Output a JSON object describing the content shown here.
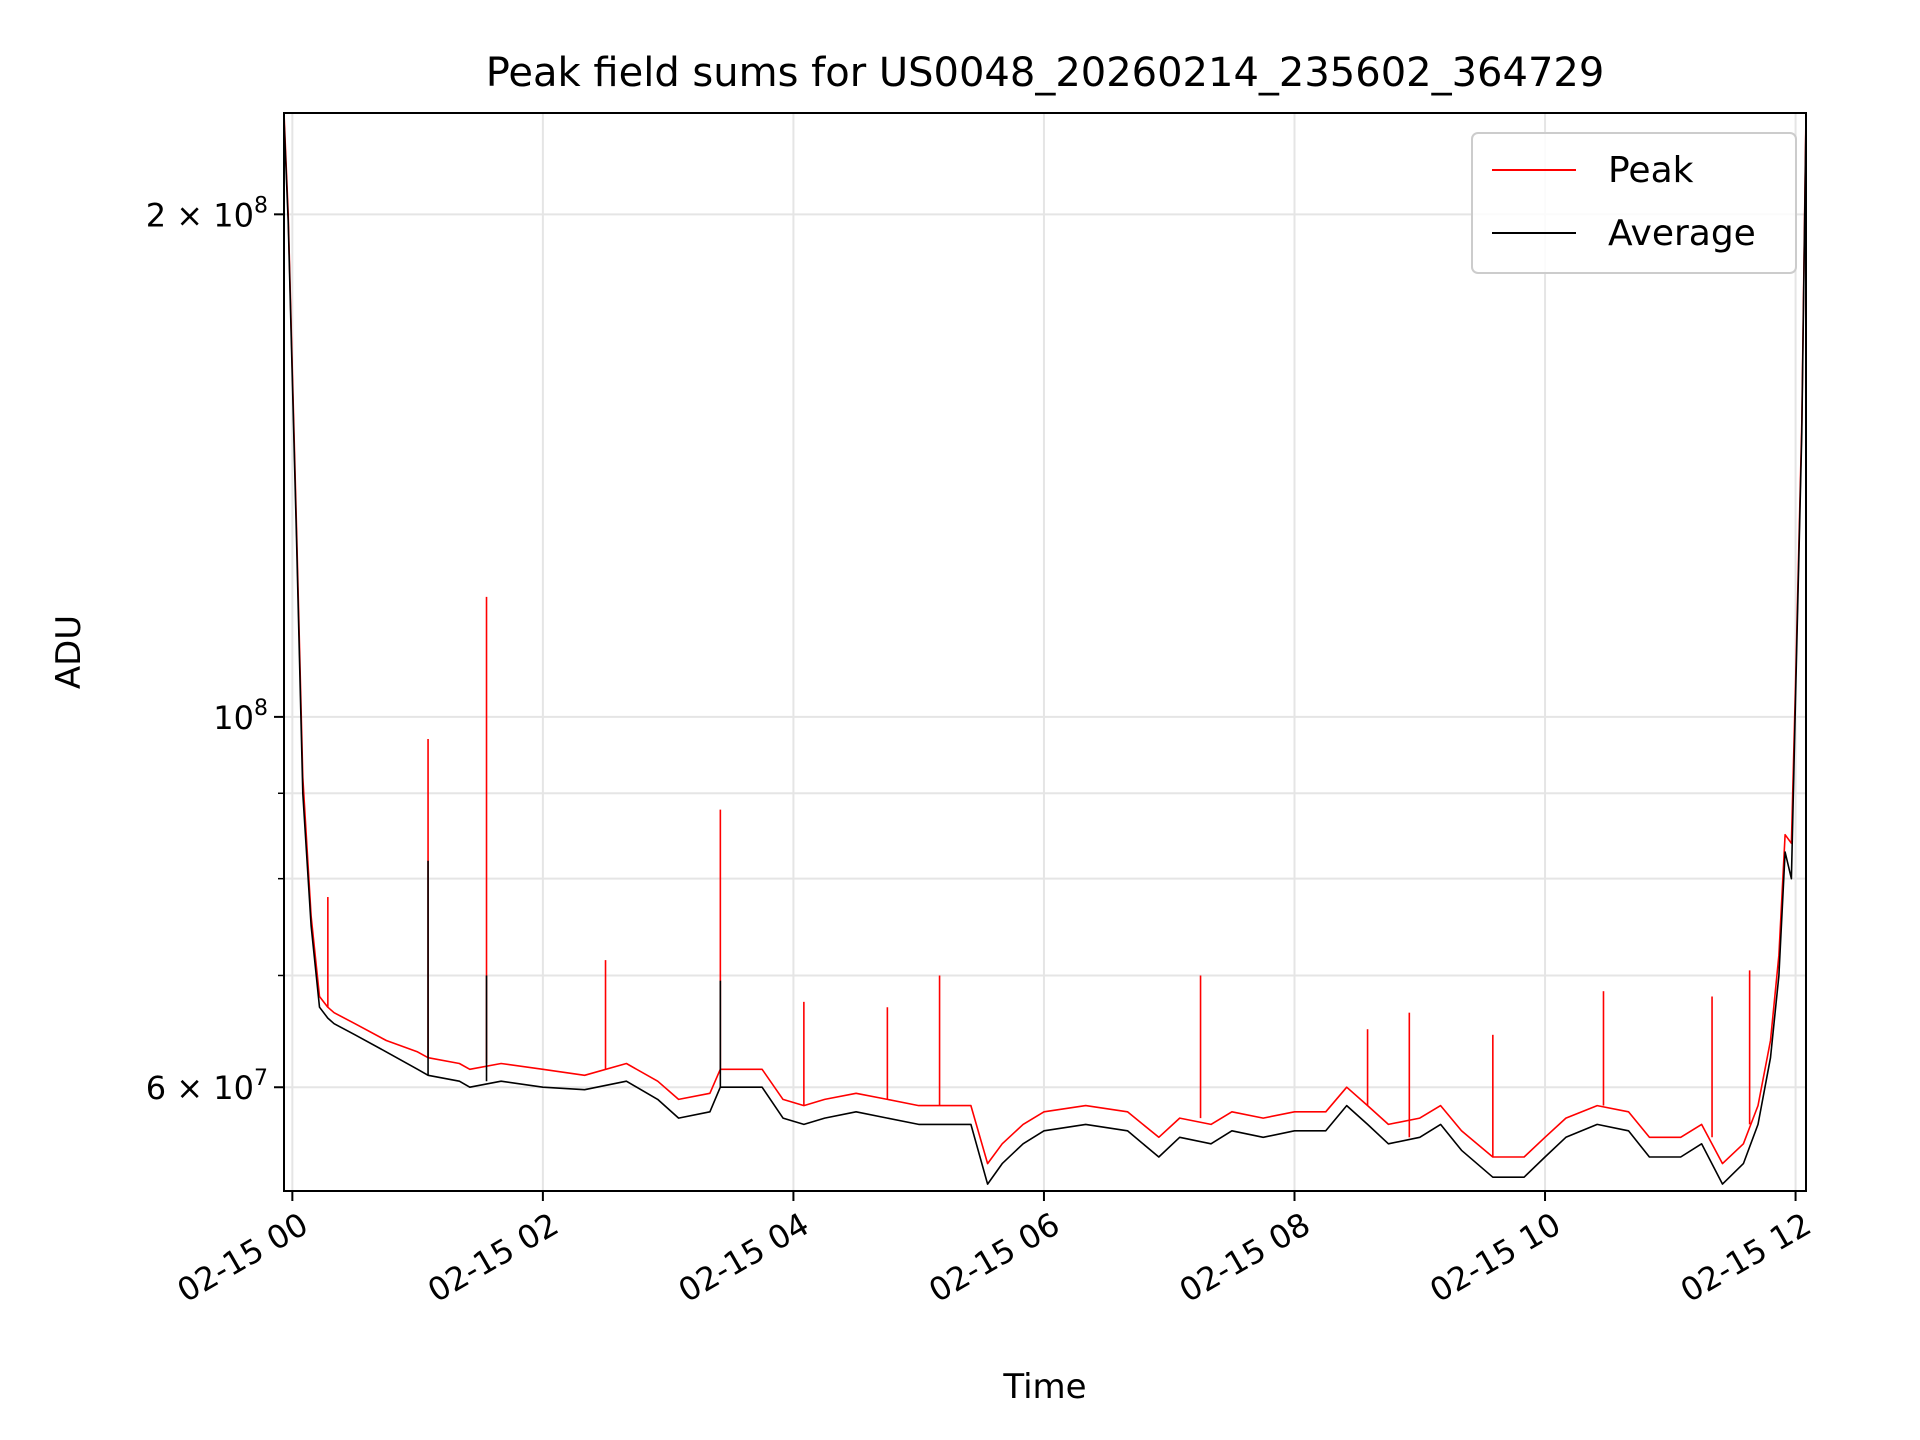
{
  "chart_data": {
    "type": "line",
    "title": "Peak field sums for US0048_20260214_235602_364729",
    "xlabel": "Time",
    "ylabel": "ADU",
    "y_scale": "log",
    "ylim": [
      52000000,
      230000000
    ],
    "xlim": [
      "2026-02-14 23:56",
      "2026-02-15 12:05"
    ],
    "grid": true,
    "legend_position": "upper right",
    "x_ticks": [
      {
        "value": "2026-02-15 00:00",
        "label": "02-15 00"
      },
      {
        "value": "2026-02-15 02:00",
        "label": "02-15 02"
      },
      {
        "value": "2026-02-15 04:00",
        "label": "02-15 04"
      },
      {
        "value": "2026-02-15 06:00",
        "label": "02-15 06"
      },
      {
        "value": "2026-02-15 08:00",
        "label": "02-15 08"
      },
      {
        "value": "2026-02-15 10:00",
        "label": "02-15 10"
      },
      {
        "value": "2026-02-15 12:00",
        "label": "02-15 12"
      }
    ],
    "y_ticks": [
      {
        "value": 200000000,
        "label": "2 × 10⁸",
        "mant": "2 × 10",
        "exp": "8"
      },
      {
        "value": 100000000,
        "label": "10⁸",
        "mant": "10",
        "exp": "8"
      },
      {
        "value": 60000000,
        "label": "6 × 10⁷",
        "mant": "6 × 10",
        "exp": "7"
      }
    ],
    "y_minor_ticks": [
      70000000,
      80000000,
      90000000
    ],
    "series": [
      {
        "name": "Peak",
        "color": "#ff0000",
        "x": [
          "2026-02-14 23:56",
          "2026-02-14 23:58",
          "2026-02-15 00:02",
          "2026-02-15 00:05",
          "2026-02-15 00:09",
          "2026-02-15 00:13",
          "2026-02-15 00:17",
          "2026-02-15 00:20",
          "2026-02-15 00:30",
          "2026-02-15 00:45",
          "2026-02-15 01:00",
          "2026-02-15 01:05",
          "2026-02-15 01:20",
          "2026-02-15 01:25",
          "2026-02-15 01:40",
          "2026-02-15 02:00",
          "2026-02-15 02:20",
          "2026-02-15 02:40",
          "2026-02-15 02:55",
          "2026-02-15 03:05",
          "2026-02-15 03:20",
          "2026-02-15 03:25",
          "2026-02-15 03:45",
          "2026-02-15 03:55",
          "2026-02-15 04:05",
          "2026-02-15 04:15",
          "2026-02-15 04:30",
          "2026-02-15 04:45",
          "2026-02-15 05:00",
          "2026-02-15 05:15",
          "2026-02-15 05:25",
          "2026-02-15 05:33",
          "2026-02-15 05:40",
          "2026-02-15 05:50",
          "2026-02-15 06:00",
          "2026-02-15 06:20",
          "2026-02-15 06:40",
          "2026-02-15 06:55",
          "2026-02-15 07:05",
          "2026-02-15 07:20",
          "2026-02-15 07:30",
          "2026-02-15 07:45",
          "2026-02-15 08:00",
          "2026-02-15 08:15",
          "2026-02-15 08:25",
          "2026-02-15 08:35",
          "2026-02-15 08:45",
          "2026-02-15 09:00",
          "2026-02-15 09:10",
          "2026-02-15 09:20",
          "2026-02-15 09:35",
          "2026-02-15 09:50",
          "2026-02-15 10:00",
          "2026-02-15 10:10",
          "2026-02-15 10:25",
          "2026-02-15 10:40",
          "2026-02-15 10:50",
          "2026-02-15 11:05",
          "2026-02-15 11:15",
          "2026-02-15 11:25",
          "2026-02-15 11:35",
          "2026-02-15 11:42",
          "2026-02-15 11:48",
          "2026-02-15 11:52",
          "2026-02-15 11:55",
          "2026-02-15 11:58",
          "2026-02-15 12:00",
          "2026-02-15 12:03",
          "2026-02-15 12:05"
        ],
        "values": [
          230000000,
          200000000,
          130000000,
          92000000,
          76000000,
          68000000,
          67000000,
          66500000,
          65500000,
          64000000,
          63000000,
          62500000,
          62000000,
          61500000,
          62000000,
          61500000,
          61000000,
          62000000,
          60500000,
          59000000,
          59500000,
          61500000,
          61500000,
          59000000,
          58500000,
          59000000,
          59500000,
          59000000,
          58500000,
          58500000,
          58500000,
          54000000,
          55500000,
          57000000,
          58000000,
          58500000,
          58000000,
          56000000,
          57500000,
          57000000,
          58000000,
          57500000,
          58000000,
          58000000,
          60000000,
          58500000,
          57000000,
          57500000,
          58500000,
          56500000,
          54500000,
          54500000,
          56000000,
          57500000,
          58500000,
          58000000,
          56000000,
          56000000,
          57000000,
          54000000,
          55500000,
          58500000,
          64000000,
          72000000,
          85000000,
          84000000,
          105000000,
          150000000,
          230000000
        ]
      },
      {
        "name": "Average",
        "color": "#000000",
        "x": [
          "2026-02-14 23:56",
          "2026-02-14 23:58",
          "2026-02-15 00:02",
          "2026-02-15 00:05",
          "2026-02-15 00:09",
          "2026-02-15 00:13",
          "2026-02-15 00:17",
          "2026-02-15 00:20",
          "2026-02-15 00:30",
          "2026-02-15 00:45",
          "2026-02-15 01:00",
          "2026-02-15 01:05",
          "2026-02-15 01:20",
          "2026-02-15 01:25",
          "2026-02-15 01:40",
          "2026-02-15 02:00",
          "2026-02-15 02:20",
          "2026-02-15 02:40",
          "2026-02-15 02:55",
          "2026-02-15 03:05",
          "2026-02-15 03:20",
          "2026-02-15 03:25",
          "2026-02-15 03:45",
          "2026-02-15 03:55",
          "2026-02-15 04:05",
          "2026-02-15 04:15",
          "2026-02-15 04:30",
          "2026-02-15 04:45",
          "2026-02-15 05:00",
          "2026-02-15 05:15",
          "2026-02-15 05:25",
          "2026-02-15 05:33",
          "2026-02-15 05:40",
          "2026-02-15 05:50",
          "2026-02-15 06:00",
          "2026-02-15 06:20",
          "2026-02-15 06:40",
          "2026-02-15 06:55",
          "2026-02-15 07:05",
          "2026-02-15 07:20",
          "2026-02-15 07:30",
          "2026-02-15 07:45",
          "2026-02-15 08:00",
          "2026-02-15 08:15",
          "2026-02-15 08:25",
          "2026-02-15 08:35",
          "2026-02-15 08:45",
          "2026-02-15 09:00",
          "2026-02-15 09:10",
          "2026-02-15 09:20",
          "2026-02-15 09:35",
          "2026-02-15 09:50",
          "2026-02-15 10:00",
          "2026-02-15 10:10",
          "2026-02-15 10:25",
          "2026-02-15 10:40",
          "2026-02-15 10:50",
          "2026-02-15 11:05",
          "2026-02-15 11:15",
          "2026-02-15 11:25",
          "2026-02-15 11:35",
          "2026-02-15 11:42",
          "2026-02-15 11:48",
          "2026-02-15 11:52",
          "2026-02-15 11:55",
          "2026-02-15 11:58",
          "2026-02-15 12:00",
          "2026-02-15 12:03",
          "2026-02-15 12:05"
        ],
        "values": [
          228000000,
          198000000,
          128000000,
          90000000,
          75000000,
          67000000,
          66000000,
          65500000,
          64500000,
          63000000,
          61500000,
          61000000,
          60500000,
          60000000,
          60500000,
          60000000,
          59800000,
          60500000,
          59000000,
          57500000,
          58000000,
          60000000,
          60000000,
          57500000,
          57000000,
          57500000,
          58000000,
          57500000,
          57000000,
          57000000,
          57000000,
          52500000,
          54000000,
          55500000,
          56500000,
          57000000,
          56500000,
          54500000,
          56000000,
          55500000,
          56500000,
          56000000,
          56500000,
          56500000,
          58500000,
          57000000,
          55500000,
          56000000,
          57000000,
          55000000,
          53000000,
          53000000,
          54500000,
          56000000,
          57000000,
          56500000,
          54500000,
          54500000,
          55500000,
          52500000,
          54000000,
          57000000,
          62500000,
          70000000,
          83000000,
          80000000,
          103000000,
          148000000,
          228000000
        ]
      }
    ],
    "spikes": [
      {
        "series": "Peak",
        "x": "2026-02-15 01:05",
        "base": 62500000,
        "top": 97000000
      },
      {
        "series": "Average",
        "x": "2026-02-15 01:05",
        "base": 61000000,
        "top": 82000000
      },
      {
        "series": "Peak",
        "x": "2026-02-15 01:33",
        "base": 62000000,
        "top": 118000000
      },
      {
        "series": "Average",
        "x": "2026-02-15 01:33",
        "base": 60500000,
        "top": 70000000
      },
      {
        "series": "Peak",
        "x": "2026-02-15 03:25",
        "base": 61500000,
        "top": 88000000
      },
      {
        "series": "Average",
        "x": "2026-02-15 03:25",
        "base": 60000000,
        "top": 69500000
      },
      {
        "series": "Peak",
        "x": "2026-02-15 00:17",
        "base": 67000000,
        "top": 78000000
      },
      {
        "series": "Peak",
        "x": "2026-02-15 02:30",
        "base": 61500000,
        "top": 71500000
      },
      {
        "series": "Peak",
        "x": "2026-02-15 05:10",
        "base": 58500000,
        "top": 70000000
      },
      {
        "series": "Peak",
        "x": "2026-02-15 07:15",
        "base": 57500000,
        "top": 70000000
      },
      {
        "series": "Peak",
        "x": "2026-02-15 09:35",
        "base": 54500000,
        "top": 64500000
      },
      {
        "series": "Peak",
        "x": "2026-02-15 10:28",
        "base": 58500000,
        "top": 68500000
      },
      {
        "series": "Peak",
        "x": "2026-02-15 11:20",
        "base": 56000000,
        "top": 68000000
      },
      {
        "series": "Peak",
        "x": "2026-02-15 11:38",
        "base": 57000000,
        "top": 70500000
      },
      {
        "series": "Peak",
        "x": "2026-02-15 08:35",
        "base": 58500000,
        "top": 65000000
      },
      {
        "series": "Peak",
        "x": "2026-02-15 08:55",
        "base": 56000000,
        "top": 66500000
      },
      {
        "series": "Peak",
        "x": "2026-02-15 04:05",
        "base": 58500000,
        "top": 67500000
      },
      {
        "series": "Peak",
        "x": "2026-02-15 04:45",
        "base": 59000000,
        "top": 67000000
      }
    ]
  }
}
